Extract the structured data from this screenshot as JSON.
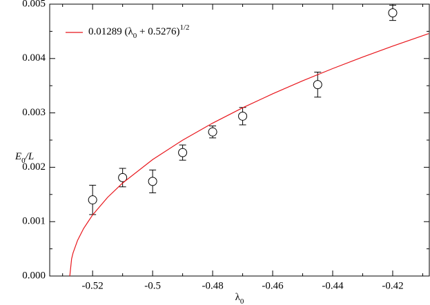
{
  "chart_data": {
    "type": "scatter",
    "x_label_parts": [
      "λ",
      "0"
    ],
    "y_label_parts": [
      "E",
      "0",
      "/L"
    ],
    "xlim": [
      -0.5343,
      -0.4078
    ],
    "ylim": [
      0,
      0.005
    ],
    "xticks": [
      -0.52,
      -0.5,
      -0.48,
      -0.46,
      -0.44,
      -0.42
    ],
    "xminorticks": [
      -0.53,
      -0.51,
      -0.49,
      -0.47,
      -0.45,
      -0.43,
      -0.41
    ],
    "yticks": [
      {
        "value": 0,
        "label": "0.000"
      },
      {
        "value": 0.001,
        "label": "0.001"
      },
      {
        "value": 0.002,
        "label": "0.002"
      },
      {
        "value": 0.003,
        "label": "0.003"
      },
      {
        "value": 0.004,
        "label": "0.004"
      },
      {
        "value": 0.005,
        "label": "0.005"
      }
    ],
    "yminorticks": [
      0.0005,
      0.0015,
      0.0025,
      0.0035,
      0.0045
    ],
    "series": [
      {
        "kind": "points",
        "color": "#000000",
        "x": [
          -0.52,
          -0.51,
          -0.5,
          -0.49,
          -0.48,
          -0.47,
          -0.445,
          -0.42
        ],
        "values": [
          0.0014,
          0.00181,
          0.00174,
          0.00227,
          0.00265,
          0.00294,
          0.00352,
          0.00484
        ],
        "errors": [
          0.00027,
          0.00017,
          0.00021,
          0.00014,
          0.00011,
          0.00016,
          0.00023,
          0.00014
        ]
      },
      {
        "kind": "line",
        "color": "#e8141a",
        "name_parts": [
          "0.01289 (λ",
          "0",
          " + 0.5276)",
          "1/2"
        ],
        "x": [
          -0.5276,
          -0.527,
          -0.5265,
          -0.525,
          -0.523,
          -0.52,
          -0.515,
          -0.51,
          -0.5,
          -0.49,
          -0.48,
          -0.47,
          -0.46,
          -0.45,
          -0.44,
          -0.43,
          -0.42,
          -0.408
        ],
        "values": [
          0,
          0.000316,
          0.000428,
          0.000657,
          0.000874,
          0.001124,
          0.001447,
          0.00171,
          0.002141,
          0.002499,
          0.002812,
          0.003094,
          0.003351,
          0.003591,
          0.003815,
          0.004027,
          0.004228,
          0.004458
        ]
      }
    ]
  }
}
